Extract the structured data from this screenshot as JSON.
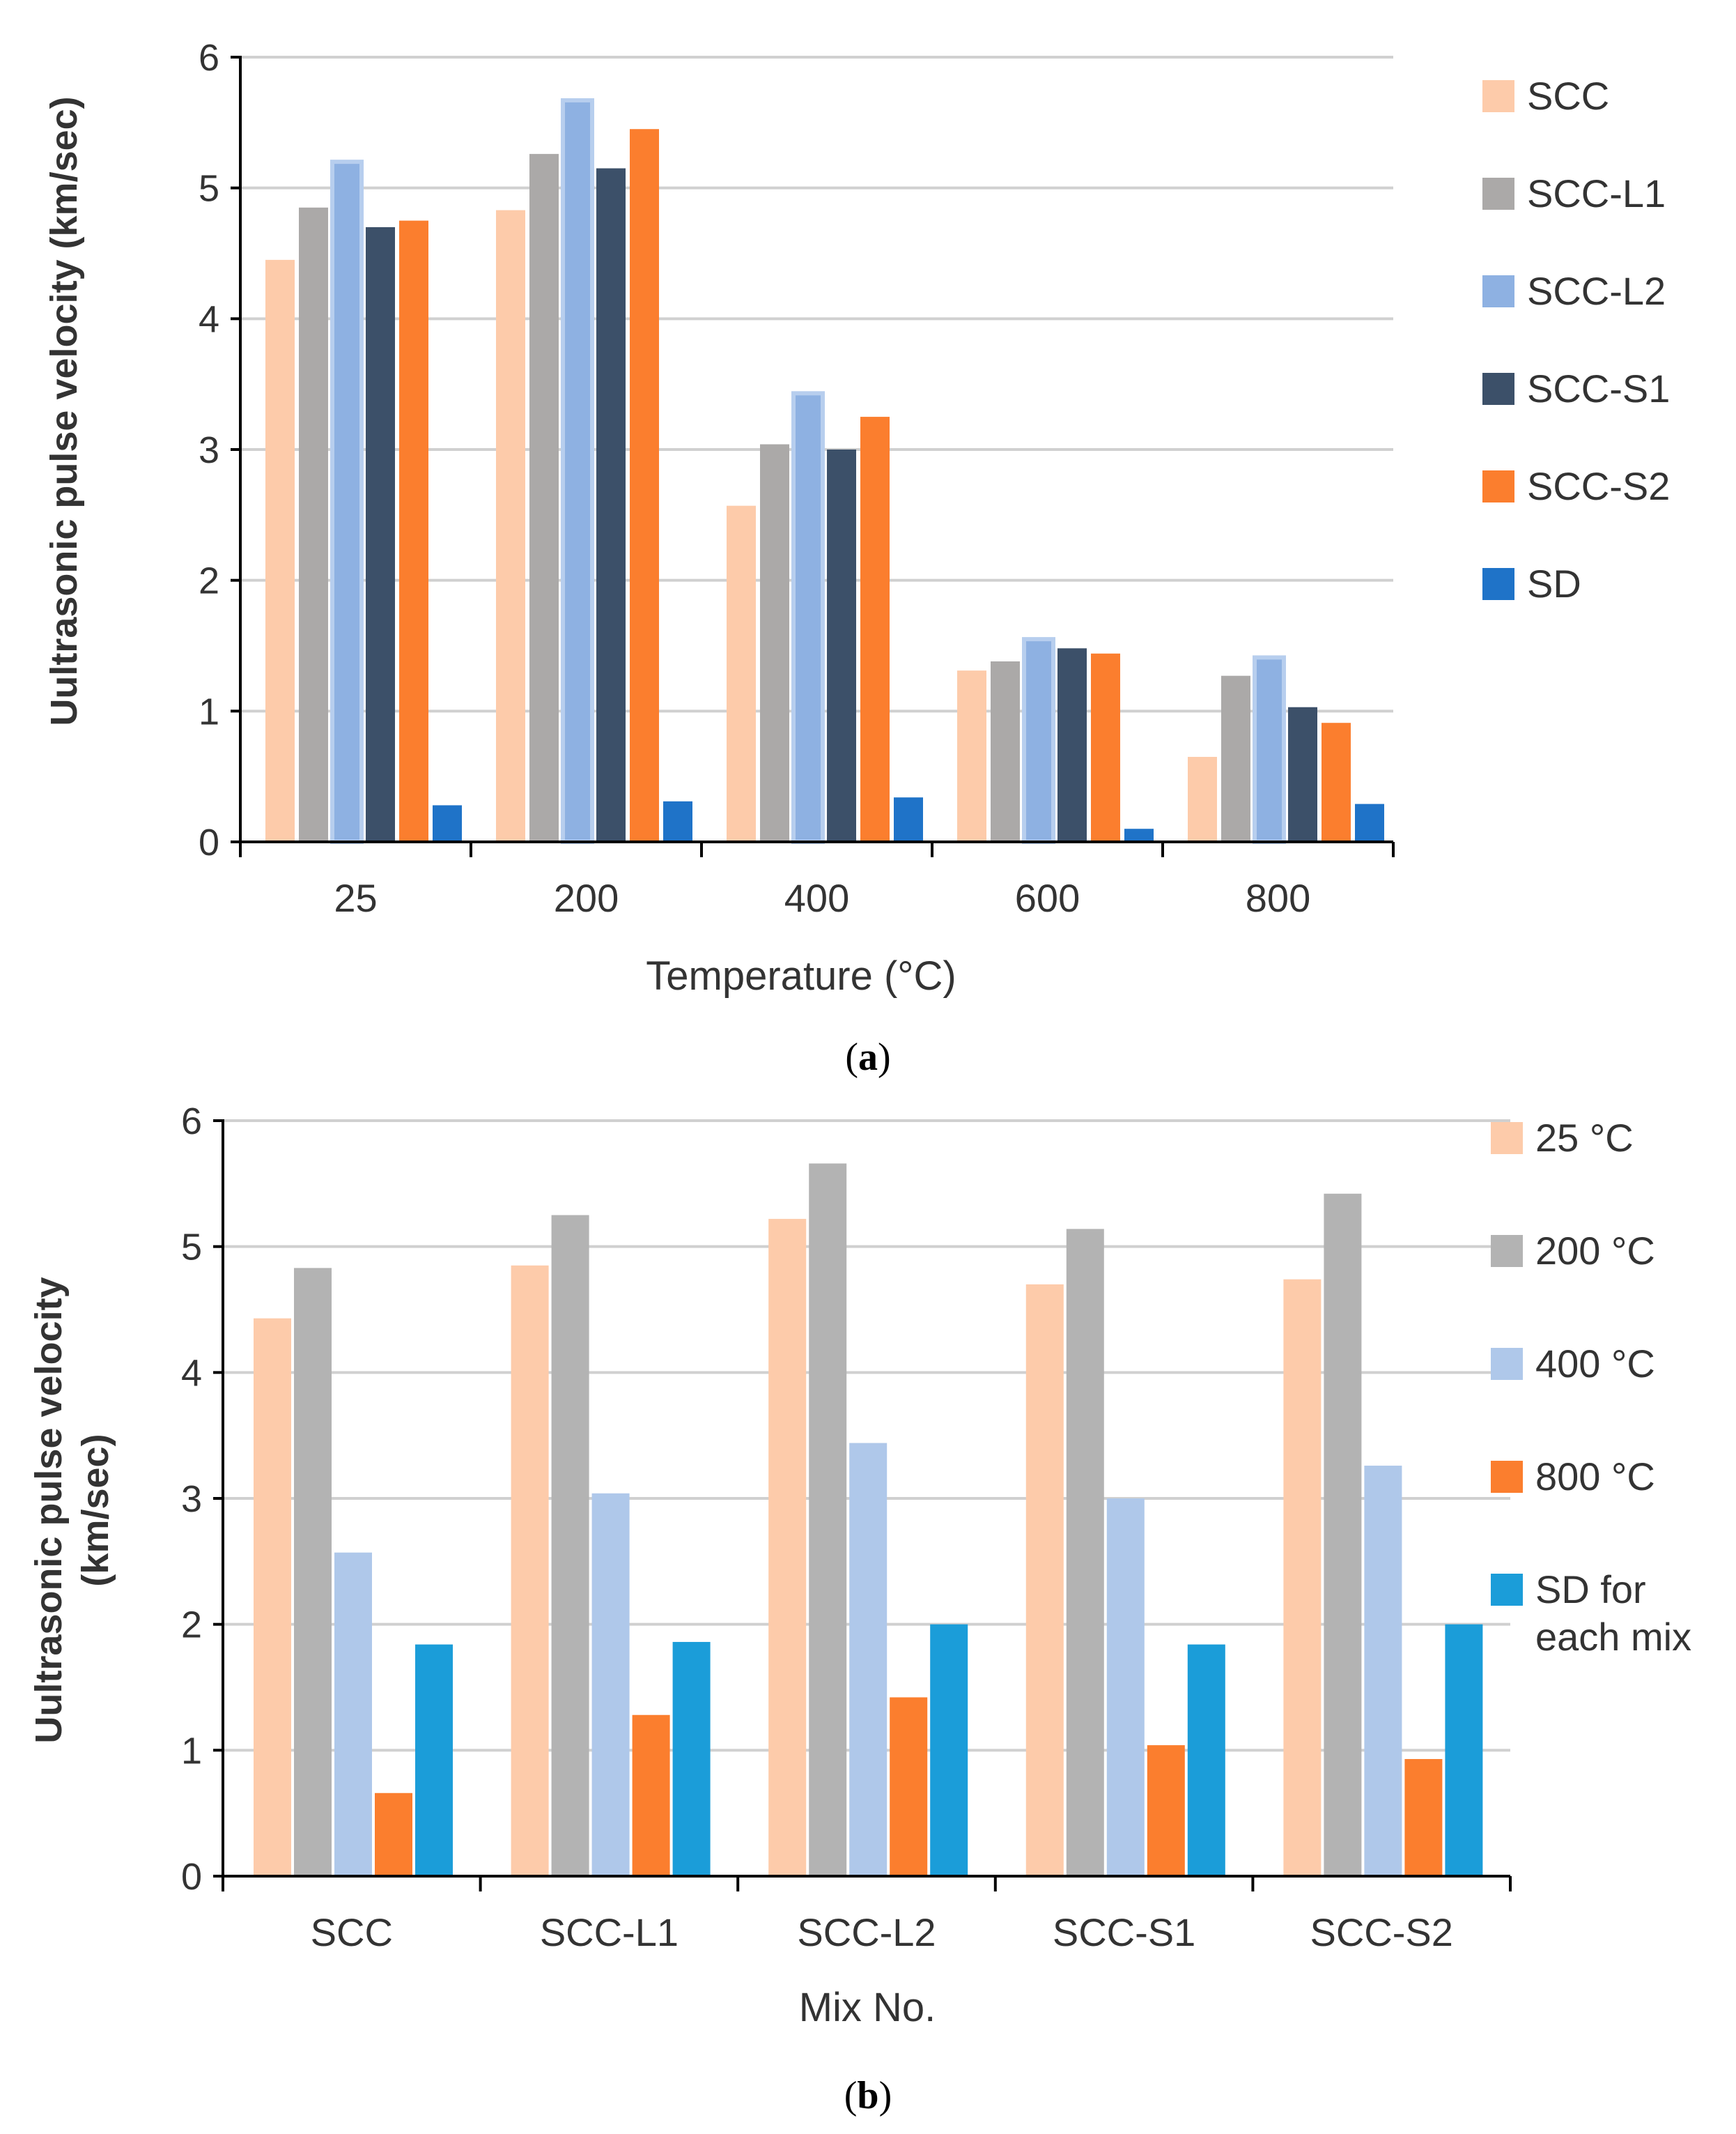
{
  "chart_data": [
    {
      "type": "bar",
      "panel_label": "a",
      "title": "",
      "xlabel": "Temperature (°C)",
      "ylabel": "Uultrasonic pulse velocity (km/sec)",
      "ylim": [
        0,
        6
      ],
      "yticks": [
        "0",
        "1",
        "2",
        "3",
        "4",
        "5",
        "6"
      ],
      "grid": true,
      "legend_position": "right",
      "categories": [
        "25",
        "200",
        "400",
        "600",
        "800"
      ],
      "series": [
        {
          "name": "SCC",
          "color": "#FDCBAA",
          "values": [
            4.45,
            4.83,
            2.57,
            1.31,
            0.65
          ]
        },
        {
          "name": "SCC-L1",
          "color": "#ABA9A8",
          "values": [
            4.85,
            5.26,
            3.04,
            1.38,
            1.27
          ]
        },
        {
          "name": "SCC-L2",
          "color": "#8EB1E2",
          "values": [
            5.2,
            5.67,
            3.43,
            1.55,
            1.41
          ]
        },
        {
          "name": "SCC-S1",
          "color": "#3C5069",
          "values": [
            4.7,
            5.15,
            3.0,
            1.48,
            1.03
          ]
        },
        {
          "name": "SCC-S2",
          "color": "#FB7E2E",
          "values": [
            4.75,
            5.45,
            3.25,
            1.44,
            0.91
          ]
        },
        {
          "name": "SD",
          "color": "#1F73C8",
          "values": [
            0.28,
            0.31,
            0.34,
            0.1,
            0.29
          ]
        }
      ]
    },
    {
      "type": "bar",
      "panel_label": "b",
      "title": "",
      "xlabel": "Mix No.",
      "ylabel_lines": [
        "Uultrasonic pulse velocity",
        "(km/sec)"
      ],
      "ylim": [
        0,
        6
      ],
      "yticks": [
        "0",
        "1",
        "2",
        "3",
        "4",
        "5",
        "6"
      ],
      "grid": true,
      "legend_position": "right",
      "categories": [
        "SCC",
        "SCC-L1",
        "SCC-L2",
        "SCC-S1",
        "SCC-S2"
      ],
      "series": [
        {
          "name": "25 °C",
          "name_lines": [
            "25 °C"
          ],
          "color": "#FDCBAA",
          "values": [
            4.43,
            4.85,
            5.22,
            4.7,
            4.74
          ]
        },
        {
          "name": "200 °C",
          "name_lines": [
            "200 °C"
          ],
          "color": "#B3B3B3",
          "values": [
            4.83,
            5.25,
            5.66,
            5.14,
            5.42
          ]
        },
        {
          "name": "400 °C",
          "name_lines": [
            "400 °C"
          ],
          "color": "#AFC8EA",
          "values": [
            2.57,
            3.04,
            3.44,
            3.0,
            3.26
          ]
        },
        {
          "name": "800 °C",
          "name_lines": [
            "800 °C"
          ],
          "color": "#FB7E2E",
          "values": [
            0.66,
            1.28,
            1.42,
            1.04,
            0.93
          ]
        },
        {
          "name": "SD for each mix",
          "name_lines": [
            "SD for",
            "each mix"
          ],
          "color": "#1B9DD9",
          "values": [
            1.84,
            1.86,
            2.0,
            1.84,
            2.0
          ]
        }
      ]
    }
  ]
}
